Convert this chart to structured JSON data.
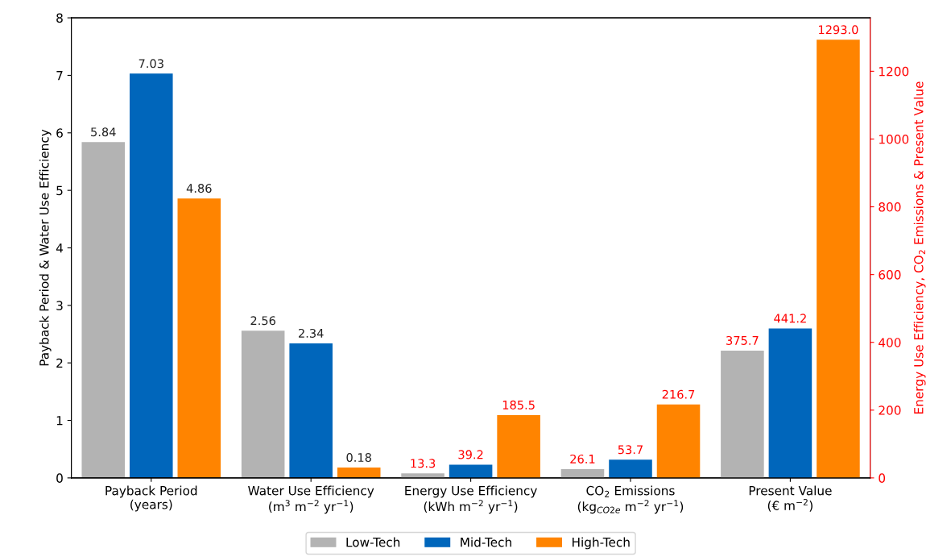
{
  "chart_data": {
    "type": "bar",
    "ylabel": "Payback Period & Water Use Efficiency",
    "y2label": "Energy Use Efficiency, CO$_{2}$ Emissions & Present Value",
    "categories": [
      "Payback Period\n(years)",
      "Water Use Efficiency\n(m$^{3}$ m$^{−2}$ yr$^{−1}$)",
      "Energy Use Efficiency\n(kWh m$^{−2}$ yr$^{−1}$)",
      "CO$_{2}$ Emissions\n(kg$_{CO2e}$ m$^{−2}$ yr$^{−1}$)",
      "Present Value\n(€ m$^{−2}$)"
    ],
    "series": [
      {
        "name": "Low-Tech",
        "color": "#b3b3b3",
        "values": [
          5.84,
          2.56,
          null,
          null,
          null
        ],
        "value_labels": [
          "5.84",
          "2.56",
          null,
          null,
          null
        ]
      },
      {
        "name": "Mid-Tech",
        "color": "#0066bb",
        "values": [
          7.03,
          2.34,
          null,
          null,
          null
        ],
        "value_labels": [
          "7.03",
          "2.34",
          null,
          null,
          null
        ]
      },
      {
        "name": "High-Tech",
        "color": "#ff8400",
        "values": [
          4.86,
          0.18,
          null,
          null,
          null
        ],
        "value_labels": [
          "4.86",
          "0.18",
          null,
          null,
          null
        ]
      },
      {
        "color": "#b3b3b3",
        "axis": "y2",
        "values": [
          null,
          null,
          13.3,
          26.1,
          375.7
        ],
        "value_labels": [
          null,
          null,
          "13.3",
          "26.1",
          "375.7"
        ]
      },
      {
        "color": "#0066bb",
        "axis": "y2",
        "values": [
          null,
          null,
          39.2,
          53.7,
          441.2
        ],
        "value_labels": [
          null,
          null,
          "39.2",
          "53.7",
          "441.2"
        ]
      },
      {
        "color": "#ff8400",
        "axis": "y2",
        "values": [
          null,
          null,
          185.5,
          216.7,
          1293.0
        ],
        "value_labels": [
          null,
          null,
          "185.5",
          "216.7",
          "1293.0"
        ]
      }
    ],
    "ylim": [
      0,
      8
    ],
    "yticks": [
      0,
      1,
      2,
      3,
      4,
      5,
      6,
      7,
      8
    ],
    "y2lim": [
      0,
      1357.65
    ],
    "y2ticks": [
      0,
      200,
      400,
      600,
      800,
      1000,
      1200
    ],
    "grid": false,
    "legend": "bottom"
  }
}
